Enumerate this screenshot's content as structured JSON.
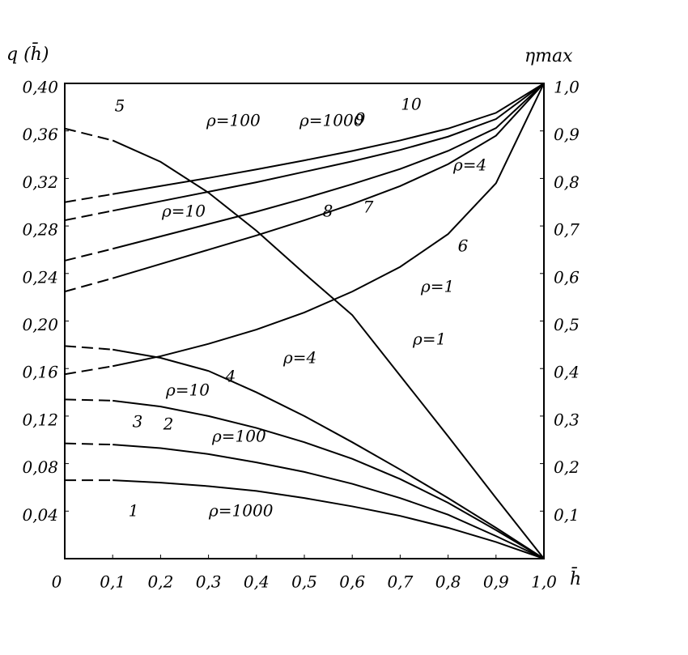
{
  "chart_data": {
    "type": "line",
    "ylabel": "q (h̄)",
    "y2label": "ηmax",
    "xlabel": "h̄",
    "x": [
      0,
      0.1,
      0.2,
      0.3,
      0.4,
      0.5,
      0.6,
      0.7,
      0.8,
      0.9,
      1.0
    ],
    "xlim": [
      0,
      1.0
    ],
    "xticks": [
      0,
      {
        "value": 0.1,
        "label": "0,1"
      },
      {
        "value": 0.2,
        "label": "0,2"
      },
      {
        "value": 0.3,
        "label": "0,3"
      },
      {
        "value": 0.4,
        "label": "0,4"
      },
      {
        "value": 0.5,
        "label": "0,5"
      },
      {
        "value": 0.6,
        "label": "0,6"
      },
      {
        "value": 0.7,
        "label": "0,7"
      },
      {
        "value": 0.8,
        "label": "0,8"
      },
      {
        "value": 0.9,
        "label": "0,9"
      },
      {
        "value": 1.0,
        "label": "1,0"
      }
    ],
    "ylim": [
      0,
      0.4
    ],
    "yticks": [
      {
        "value": 0.04,
        "label": "0,04"
      },
      {
        "value": 0.08,
        "label": "0,08"
      },
      {
        "value": 0.12,
        "label": "0,12"
      },
      {
        "value": 0.16,
        "label": "0,16"
      },
      {
        "value": 0.2,
        "label": "0,20"
      },
      {
        "value": 0.24,
        "label": "0,24"
      },
      {
        "value": 0.28,
        "label": "0,28"
      },
      {
        "value": 0.32,
        "label": "0,32"
      },
      {
        "value": 0.36,
        "label": "0,36"
      },
      {
        "value": 0.4,
        "label": "0,40"
      }
    ],
    "y2lim": [
      0,
      1.0
    ],
    "y2ticks": [
      {
        "value": 0.1,
        "label": "0,1"
      },
      {
        "value": 0.2,
        "label": "0,2"
      },
      {
        "value": 0.3,
        "label": "0,3"
      },
      {
        "value": 0.4,
        "label": "0,4"
      },
      {
        "value": 0.5,
        "label": "0,5"
      },
      {
        "value": 0.6,
        "label": "0,6"
      },
      {
        "value": 0.7,
        "label": "0,7"
      },
      {
        "value": 0.8,
        "label": "0,8"
      },
      {
        "value": 0.9,
        "label": "0,9"
      },
      {
        "value": 1.0,
        "label": "1,0"
      }
    ],
    "grid": false,
    "series": [
      {
        "name": "1",
        "label": "ρ=1000",
        "color": "#000000",
        "values": [
          0.066,
          0.066,
          0.064,
          0.061,
          0.057,
          0.051,
          0.044,
          0.036,
          0.026,
          0.014,
          0
        ]
      },
      {
        "name": "2",
        "label": "ρ=100",
        "color": "#000000",
        "values": [
          0.097,
          0.096,
          0.093,
          0.088,
          0.081,
          0.073,
          0.063,
          0.051,
          0.037,
          0.019,
          0
        ]
      },
      {
        "name": "3",
        "label": "ρ=10",
        "color": "#000000",
        "values": [
          0.134,
          0.133,
          0.128,
          0.12,
          0.11,
          0.098,
          0.084,
          0.067,
          0.047,
          0.024,
          0
        ]
      },
      {
        "name": "4",
        "label": "ρ=4",
        "color": "#000000",
        "values": [
          0.179,
          0.176,
          0.169,
          0.158,
          0.14,
          0.12,
          0.098,
          0.075,
          0.051,
          0.026,
          0
        ]
      },
      {
        "name": "5",
        "label": "ρ=1",
        "color": "#000000",
        "values": [
          0.362,
          0.352,
          0.334,
          0.308,
          0.276,
          0.24,
          0.205,
          0.154,
          0.103,
          0.051,
          0
        ]
      },
      {
        "name": "6",
        "label": "ρ=1",
        "color": "#000000",
        "axis": "y2",
        "values": [
          0.388,
          0.405,
          0.426,
          0.452,
          0.482,
          0.518,
          0.562,
          0.614,
          0.683,
          0.79,
          1.0
        ]
      },
      {
        "name": "7",
        "label": "ρ=4",
        "color": "#000000",
        "axis": "y2",
        "values": [
          0.562,
          0.59,
          0.62,
          0.65,
          0.68,
          0.712,
          0.746,
          0.784,
          0.83,
          0.89,
          1.0
        ]
      },
      {
        "name": "8",
        "label": "ρ=10",
        "color": "#000000",
        "axis": "y2",
        "values": [
          0.627,
          0.652,
          0.678,
          0.704,
          0.73,
          0.758,
          0.788,
          0.82,
          0.858,
          0.906,
          1.0
        ]
      },
      {
        "name": "9",
        "label": "ρ=100",
        "color": "#000000",
        "axis": "y2",
        "values": [
          0.712,
          0.732,
          0.752,
          0.772,
          0.792,
          0.814,
          0.836,
          0.86,
          0.888,
          0.925,
          1.0
        ]
      },
      {
        "name": "10",
        "label": "ρ=1000",
        "color": "#000000",
        "axis": "y2",
        "values": [
          0.75,
          0.767,
          0.784,
          0.801,
          0.819,
          0.838,
          0.858,
          0.88,
          0.905,
          0.938,
          1.0
        ]
      }
    ]
  }
}
